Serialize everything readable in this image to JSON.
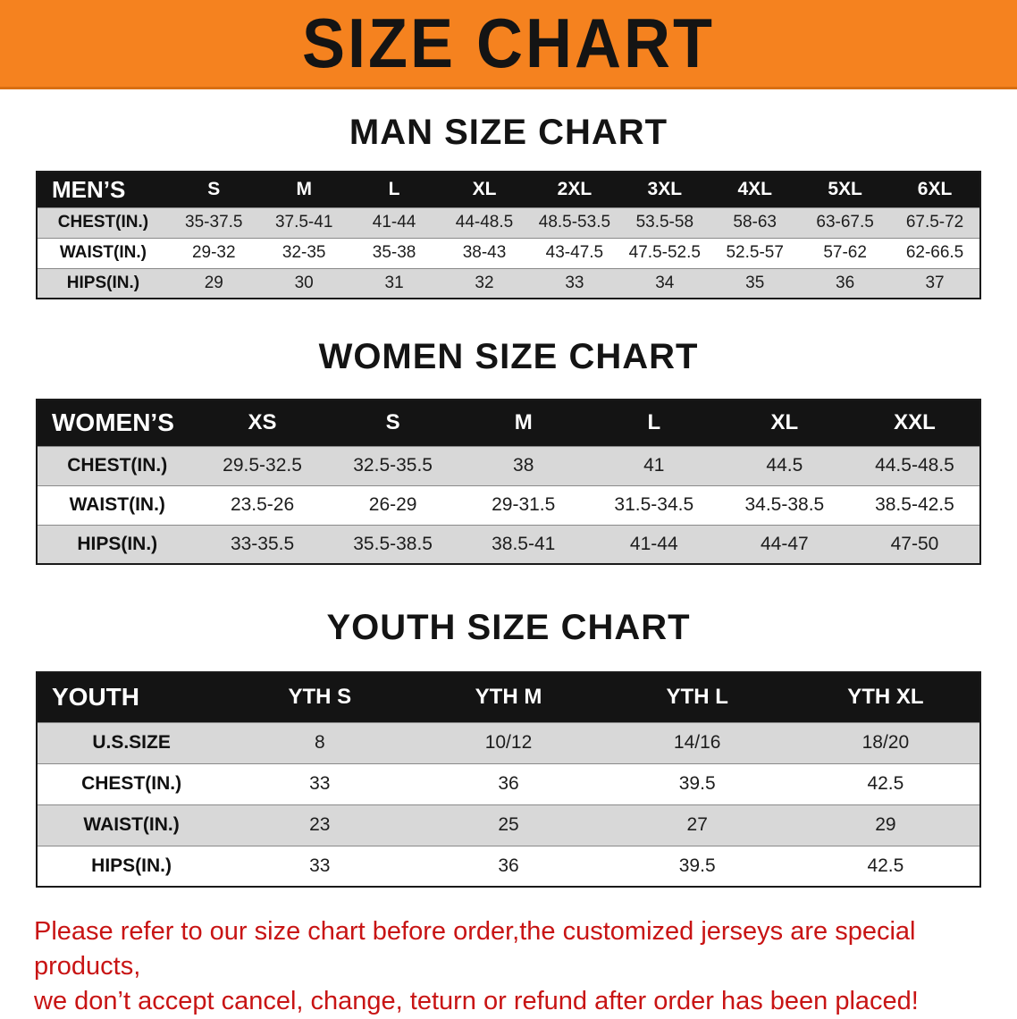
{
  "banner": {
    "title": "SIZE CHART",
    "bg_color": "#f5821f",
    "text_color": "#141414"
  },
  "sections": [
    {
      "title": "MAN SIZE CHART",
      "table": {
        "name": "mens",
        "css": "tbl-mens",
        "header_label": "MEN’S",
        "columns": [
          "S",
          "M",
          "L",
          "XL",
          "2XL",
          "3XL",
          "4XL",
          "5XL",
          "6XL"
        ],
        "rows": [
          {
            "label": "CHEST(IN.)",
            "values": [
              "35-37.5",
              "37.5-41",
              "41-44",
              "44-48.5",
              "48.5-53.5",
              "53.5-58",
              "58-63",
              "63-67.5",
              "67.5-72"
            ]
          },
          {
            "label": "WAIST(IN.)",
            "values": [
              "29-32",
              "32-35",
              "35-38",
              "38-43",
              "43-47.5",
              "47.5-52.5",
              "52.5-57",
              "57-62",
              "62-66.5"
            ]
          },
          {
            "label": "HIPS(IN.)",
            "values": [
              "29",
              "30",
              "31",
              "32",
              "33",
              "34",
              "35",
              "36",
              "37"
            ]
          }
        ]
      }
    },
    {
      "title": "WOMEN SIZE CHART",
      "table": {
        "name": "womens",
        "css": "tbl-womens",
        "header_label": "WOMEN’S",
        "columns": [
          "XS",
          "S",
          "M",
          "L",
          "XL",
          "XXL"
        ],
        "rows": [
          {
            "label": "CHEST(IN.)",
            "values": [
              "29.5-32.5",
              "32.5-35.5",
              "38",
              "41",
              "44.5",
              "44.5-48.5"
            ]
          },
          {
            "label": "WAIST(IN.)",
            "values": [
              "23.5-26",
              "26-29",
              "29-31.5",
              "31.5-34.5",
              "34.5-38.5",
              "38.5-42.5"
            ]
          },
          {
            "label": "HIPS(IN.)",
            "values": [
              "33-35.5",
              "35.5-38.5",
              "38.5-41",
              "41-44",
              "44-47",
              "47-50"
            ]
          }
        ]
      }
    },
    {
      "title": "YOUTH SIZE CHART",
      "table": {
        "name": "youth",
        "css": "tbl-youth",
        "header_label": "YOUTH",
        "columns": [
          "YTH S",
          "YTH M",
          "YTH L",
          "YTH XL"
        ],
        "rows": [
          {
            "label": "U.S.SIZE",
            "values": [
              "8",
              "10/12",
              "14/16",
              "18/20"
            ]
          },
          {
            "label": "CHEST(IN.)",
            "values": [
              "33",
              "36",
              "39.5",
              "42.5"
            ]
          },
          {
            "label": "WAIST(IN.)",
            "values": [
              "23",
              "25",
              "27",
              "29"
            ]
          },
          {
            "label": "HIPS(IN.)",
            "values": [
              "33",
              "36",
              "39.5",
              "42.5"
            ]
          }
        ]
      }
    }
  ],
  "footer": {
    "line1": "Please refer to our size chart before order,the customized jerseys are special products,",
    "line2": "we don’t accept cancel, change, teturn or refund after order has been placed!",
    "text_color": "#c81414"
  }
}
